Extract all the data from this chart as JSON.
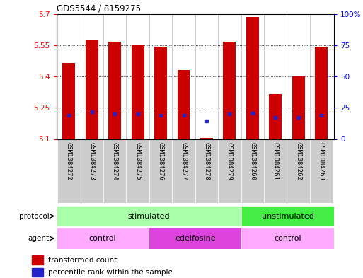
{
  "title": "GDS5544 / 8159275",
  "samples": [
    "GSM1084272",
    "GSM1084273",
    "GSM1084274",
    "GSM1084275",
    "GSM1084276",
    "GSM1084277",
    "GSM1084278",
    "GSM1084279",
    "GSM1084260",
    "GSM1084261",
    "GSM1084262",
    "GSM1084263"
  ],
  "bar_values": [
    5.465,
    5.575,
    5.565,
    5.548,
    5.543,
    5.43,
    5.105,
    5.565,
    5.685,
    5.315,
    5.4,
    5.543
  ],
  "bar_base": 5.1,
  "blue_dot_values": [
    5.215,
    5.23,
    5.22,
    5.22,
    5.215,
    5.215,
    5.185,
    5.22,
    5.225,
    5.205,
    5.205,
    5.215
  ],
  "ylim": [
    5.1,
    5.7
  ],
  "yticks_left": [
    5.1,
    5.25,
    5.4,
    5.55,
    5.7
  ],
  "ytick_labels_left": [
    "5.1",
    "5.25",
    "5.4",
    "5.55",
    "5.7"
  ],
  "yticks_right_pct": [
    0,
    25,
    50,
    75,
    100
  ],
  "ytick_labels_right": [
    "0",
    "25",
    "50",
    "75",
    "100%"
  ],
  "bar_color": "#cc0000",
  "blue_color": "#2222cc",
  "bg_color": "#ffffff",
  "xlabels_bg": "#cccccc",
  "protocol_color_stim": "#aaffaa",
  "protocol_color_unstim": "#44ee44",
  "agent_color_control": "#ffaaff",
  "agent_color_edel": "#dd44dd",
  "label_protocol": "protocol",
  "label_agent": "agent",
  "text_stimulated": "stimulated",
  "text_unstimulated": "unstimulated",
  "text_control": "control",
  "text_edelfosine": "edelfosine",
  "legend_red": "transformed count",
  "legend_blue": "percentile rank within the sample",
  "stim_range": [
    0,
    8
  ],
  "unstim_range": [
    8,
    12
  ],
  "ctrl1_range": [
    0,
    4
  ],
  "edel_range": [
    4,
    8
  ],
  "ctrl2_range": [
    8,
    12
  ]
}
